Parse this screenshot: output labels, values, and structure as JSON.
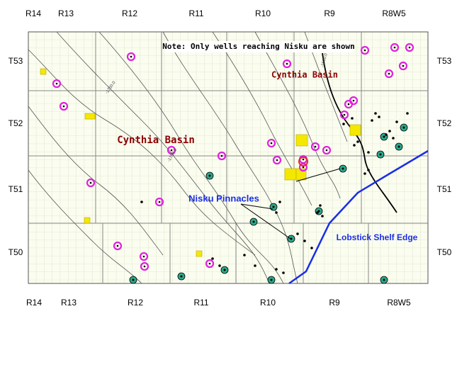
{
  "header": {
    "note": "Note: Only wells reaching Nisku are shown"
  },
  "ranges_top": [
    "R14",
    "R13",
    "R12",
    "R11",
    "R10",
    "R9",
    "R8W5"
  ],
  "ranges_bottom": [
    "R14",
    "R13",
    "R12",
    "R11",
    "R10",
    "R9",
    "R8W5"
  ],
  "townships_left": [
    "T53",
    "T52",
    "T51",
    "T50"
  ],
  "townships_right": [
    "T53",
    "T52",
    "T51",
    "T50"
  ],
  "labels": {
    "cynthia_basin_east": "Cynthia Basin",
    "cynthia_basin_west": "Cynthia Basin",
    "nisku_pinnacles": "Nisku Pinnacles",
    "lobstick": "Lobstick Shelf Edge"
  },
  "contour_labels": [
    "-1750.0",
    "-1750.0",
    "-1600.0"
  ]
}
